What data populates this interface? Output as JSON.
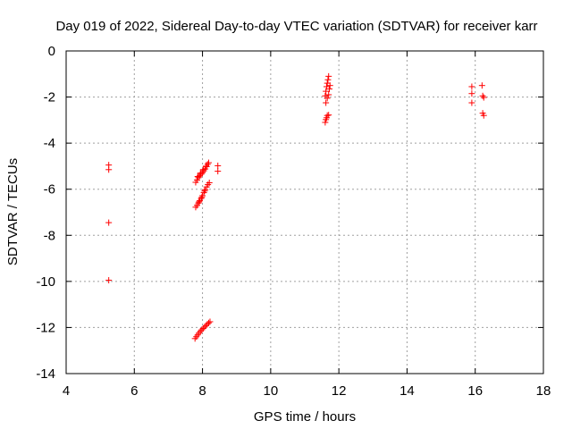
{
  "chart_data": {
    "type": "scatter",
    "title": "Day 019 of 2022, Sidereal Day-to-day VTEC variation (SDTVAR) for receiver karr",
    "xlabel": "GPS time / hours",
    "ylabel": "SDTVAR / TECUs",
    "xlim": [
      4,
      18
    ],
    "ylim": [
      -14,
      0
    ],
    "xticks": [
      4,
      6,
      8,
      10,
      12,
      14,
      16,
      18
    ],
    "yticks": [
      0,
      -2,
      -4,
      -6,
      -8,
      -10,
      -12,
      -14
    ],
    "grid": true,
    "marker": "+",
    "marker_color": "#ff0000",
    "series": [
      {
        "points": [
          [
            5.25,
            -4.95
          ],
          [
            5.25,
            -5.15
          ],
          [
            5.25,
            -7.45
          ],
          [
            5.25,
            -9.95
          ],
          [
            7.8,
            -5.7
          ],
          [
            7.84,
            -5.6
          ],
          [
            7.88,
            -5.5
          ],
          [
            7.92,
            -5.42
          ],
          [
            7.96,
            -5.35
          ],
          [
            8.0,
            -5.28
          ],
          [
            8.04,
            -5.2
          ],
          [
            8.08,
            -5.12
          ],
          [
            8.12,
            -5.02
          ],
          [
            8.15,
            -4.92
          ],
          [
            8.18,
            -4.85
          ],
          [
            7.86,
            -5.45
          ],
          [
            7.94,
            -5.3
          ],
          [
            8.02,
            -5.15
          ],
          [
            8.1,
            -5.0
          ],
          [
            7.8,
            -6.78
          ],
          [
            7.84,
            -6.7
          ],
          [
            7.88,
            -6.6
          ],
          [
            7.92,
            -6.5
          ],
          [
            7.96,
            -6.4
          ],
          [
            8.0,
            -6.28
          ],
          [
            8.04,
            -6.15
          ],
          [
            8.08,
            -6.02
          ],
          [
            8.12,
            -5.9
          ],
          [
            8.16,
            -5.8
          ],
          [
            8.2,
            -5.72
          ],
          [
            7.9,
            -6.55
          ],
          [
            7.98,
            -6.35
          ],
          [
            8.06,
            -6.08
          ],
          [
            8.45,
            -4.98
          ],
          [
            8.45,
            -5.22
          ],
          [
            7.78,
            -12.48
          ],
          [
            7.82,
            -12.4
          ],
          [
            7.86,
            -12.32
          ],
          [
            7.9,
            -12.24
          ],
          [
            7.94,
            -12.16
          ],
          [
            7.98,
            -12.1
          ],
          [
            8.02,
            -12.04
          ],
          [
            8.06,
            -11.98
          ],
          [
            8.1,
            -11.92
          ],
          [
            8.14,
            -11.86
          ],
          [
            8.18,
            -11.8
          ],
          [
            8.22,
            -11.75
          ],
          [
            11.6,
            -3.1
          ],
          [
            11.62,
            -2.98
          ],
          [
            11.64,
            -2.9
          ],
          [
            11.66,
            -2.8
          ],
          [
            11.7,
            -2.78
          ],
          [
            11.62,
            -2.25
          ],
          [
            11.6,
            -1.95
          ],
          [
            11.62,
            -1.75
          ],
          [
            11.64,
            -1.55
          ],
          [
            11.66,
            -1.4
          ],
          [
            11.68,
            -1.25
          ],
          [
            11.7,
            -1.1
          ],
          [
            11.66,
            -2.05
          ],
          [
            11.7,
            -1.9
          ],
          [
            11.72,
            -1.65
          ],
          [
            11.74,
            -1.5
          ],
          [
            15.9,
            -1.55
          ],
          [
            15.9,
            -1.85
          ],
          [
            15.9,
            -2.25
          ],
          [
            16.2,
            -1.5
          ],
          [
            16.22,
            -1.95
          ],
          [
            16.25,
            -2.02
          ],
          [
            16.22,
            -2.7
          ],
          [
            16.25,
            -2.8
          ]
        ]
      }
    ]
  }
}
